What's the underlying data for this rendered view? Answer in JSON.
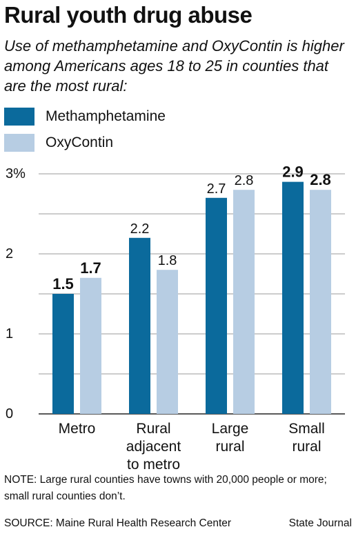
{
  "title": "Rural youth drug abuse",
  "subtitle": "Use of methamphetamine and OxyContin is higher among Americans ages 18 to 25 in counties that are the most rural:",
  "note": "NOTE: Large rural counties have towns with 20,000 people or more; small rural counties don’t.",
  "source": "SOURCE: Maine Rural Health Research Center",
  "credit": "State Journal",
  "colors": {
    "methamphetamine": "#0b6a9c",
    "oxycontin": "#b7cde3",
    "grid": "#999999"
  },
  "chart_data": {
    "type": "bar",
    "categories": [
      [
        "Metro"
      ],
      [
        "Rural",
        "adjacent",
        "to metro"
      ],
      [
        "Large",
        "rural"
      ],
      [
        "Small",
        "rural"
      ]
    ],
    "series": [
      {
        "name": "Methamphetamine",
        "values": [
          1.5,
          2.2,
          2.7,
          2.9
        ],
        "value_labels": [
          "1.5",
          "2.2",
          "2.7",
          "2.9"
        ],
        "bold_labels": [
          true,
          false,
          false,
          true
        ]
      },
      {
        "name": "OxyContin",
        "values": [
          1.7,
          1.8,
          2.8,
          2.8
        ],
        "value_labels": [
          "1.7",
          "1.8",
          "2.8",
          "2.8"
        ],
        "bold_labels": [
          true,
          false,
          false,
          true
        ]
      }
    ],
    "yticks": [
      0,
      1,
      2,
      3
    ],
    "ytick_labels": [
      "0",
      "1",
      "2",
      "3%"
    ],
    "ylim": [
      0,
      3
    ],
    "grid": true,
    "legend": "top-left"
  }
}
